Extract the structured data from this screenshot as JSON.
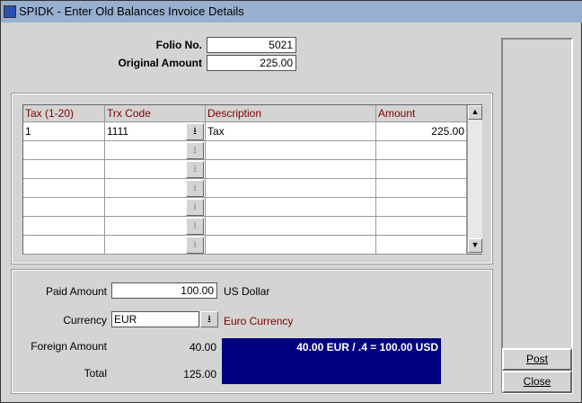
{
  "window": {
    "title": "SPIDK - Enter Old Balances Invoice Details"
  },
  "header": {
    "folio_label": "Folio No.",
    "folio_value": "5021",
    "original_label": "Original Amount",
    "original_value": "225.00"
  },
  "grid": {
    "columns": [
      "Tax (1-20)",
      "Trx Code",
      "Description",
      "Amount"
    ],
    "rows": [
      {
        "tax": "1",
        "trx": "1111",
        "desc": "Tax",
        "amount": "225.00"
      },
      {
        "tax": "",
        "trx": "",
        "desc": "",
        "amount": ""
      },
      {
        "tax": "",
        "trx": "",
        "desc": "",
        "amount": ""
      },
      {
        "tax": "",
        "trx": "",
        "desc": "",
        "amount": ""
      },
      {
        "tax": "",
        "trx": "",
        "desc": "",
        "amount": ""
      },
      {
        "tax": "",
        "trx": "",
        "desc": "",
        "amount": ""
      },
      {
        "tax": "",
        "trx": "",
        "desc": "",
        "amount": ""
      }
    ]
  },
  "payment": {
    "paid_label": "Paid Amount",
    "paid_value": "100.00",
    "paid_currency": "US Dollar",
    "currency_label": "Currency",
    "currency_value": "EUR",
    "currency_desc": "Euro Currency",
    "foreign_label": "Foreign Amount",
    "foreign_value": "40.00",
    "total_label": "Total",
    "total_value": "125.00",
    "conversion": "40.00 EUR / .4 = 100.00 USD"
  },
  "buttons": {
    "post": "Post",
    "close": "Close"
  },
  "colors": {
    "title_bar": "#98b0cf",
    "conversion_bg": "#000080",
    "header_text": "#800000"
  }
}
